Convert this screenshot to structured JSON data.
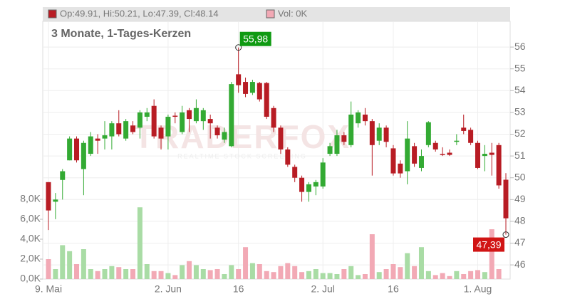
{
  "chart_data": {
    "type": "candlestick",
    "title": "3 Monate, 1-Tages-Kerzen",
    "header_ohlc": "Op:49.91, Hi:50.21, Lo:47.39, Cl:48.14",
    "header_volume": "Vol: 0K",
    "watermark": "TRADERFOX",
    "watermark_sub": "REALTIME STOCK SCREENING",
    "categories": [
      "9. Mai",
      null,
      null,
      null,
      null,
      null,
      null,
      null,
      null,
      null,
      null,
      null,
      null,
      null,
      null,
      null,
      null,
      "2. Jun",
      null,
      null,
      null,
      null,
      null,
      null,
      null,
      null,
      null,
      "16",
      null,
      null,
      null,
      null,
      null,
      null,
      null,
      null,
      null,
      null,
      null,
      "2. Jul",
      null,
      null,
      null,
      null,
      null,
      null,
      null,
      null,
      null,
      "16",
      null,
      null,
      null,
      null,
      null,
      null,
      null,
      null,
      null,
      null,
      null,
      "1. Aug",
      null,
      null,
      null,
      null
    ],
    "series": [
      {
        "name": "open",
        "values": [
          49.8,
          48.9,
          49.9,
          50.8,
          51.8,
          50.4,
          51.1,
          51.8,
          51.8,
          51.9,
          52.5,
          51.8,
          52.4,
          52.3,
          52.8,
          53.3,
          52.3,
          51.9,
          52.85,
          52.1,
          53.1,
          52.6,
          52.6,
          52.7,
          52.3,
          51.75,
          51.45,
          54.75,
          54.4,
          53.9,
          54.35,
          54.35,
          53.2,
          52.3,
          51.3,
          50.5,
          50.0,
          49.35,
          49.6,
          49.6,
          51.1,
          51.1,
          51.95,
          51.5,
          52.5,
          52.9,
          52.6,
          51.7,
          52.3,
          51.35,
          50.65,
          50.3,
          51.45,
          50.45,
          51.5,
          51.6,
          51.1,
          51.15,
          51.65,
          52.3,
          52.2,
          51.6,
          51.0,
          51.15,
          51.5,
          49.91
        ]
      },
      {
        "name": "high",
        "values": [
          49.8,
          49.3,
          50.4,
          51.9,
          51.9,
          51.7,
          52.1,
          52.0,
          52.6,
          52.6,
          53.1,
          52.7,
          52.6,
          53.1,
          53.2,
          53.6,
          52.4,
          52.9,
          53.0,
          53.3,
          53.2,
          53.6,
          53.2,
          52.9,
          52.4,
          52.3,
          54.4,
          55.98,
          54.6,
          54.5,
          54.4,
          54.4,
          53.3,
          52.4,
          51.4,
          50.6,
          50.1,
          49.8,
          49.9,
          50.9,
          51.6,
          52.2,
          52.1,
          53.5,
          53.1,
          53.2,
          52.7,
          52.5,
          52.4,
          51.5,
          50.8,
          52.6,
          51.6,
          51.3,
          52.6,
          51.7,
          51.4,
          51.3,
          52.0,
          52.9,
          52.3,
          51.7,
          51.5,
          51.6,
          51.6,
          50.21
        ]
      },
      {
        "name": "low",
        "values": [
          47.6,
          48.1,
          49.0,
          50.8,
          50.7,
          49.2,
          51.0,
          51.1,
          51.3,
          51.3,
          51.9,
          51.7,
          52.0,
          51.8,
          52.6,
          51.8,
          51.3,
          51.3,
          52.5,
          52.0,
          52.1,
          52.5,
          52.2,
          51.8,
          51.8,
          51.6,
          51.4,
          53.9,
          53.7,
          53.8,
          53.5,
          52.7,
          52.1,
          51.1,
          50.5,
          49.8,
          48.9,
          48.9,
          49.2,
          49.5,
          51.0,
          51.0,
          51.5,
          51.4,
          52.3,
          52.4,
          50.1,
          51.5,
          51.4,
          50.1,
          50.0,
          49.7,
          50.5,
          50.3,
          51.4,
          51.2,
          51.0,
          51.0,
          51.5,
          52.0,
          51.5,
          50.4,
          50.3,
          50.1,
          49.5,
          47.39
        ]
      },
      {
        "name": "close",
        "values": [
          48.5,
          49.0,
          50.3,
          51.8,
          50.8,
          51.6,
          51.9,
          51.7,
          51.95,
          52.5,
          52.0,
          52.6,
          52.1,
          53.0,
          53.0,
          51.9,
          51.8,
          52.8,
          52.8,
          53.0,
          52.7,
          53.2,
          53.1,
          52.5,
          51.95,
          52.1,
          54.3,
          54.25,
          53.85,
          54.4,
          53.6,
          52.8,
          52.3,
          51.3,
          50.6,
          50.0,
          49.35,
          49.7,
          49.8,
          50.7,
          51.45,
          51.95,
          51.65,
          52.9,
          53.0,
          52.6,
          51.5,
          52.3,
          51.65,
          50.2,
          50.2,
          51.8,
          50.65,
          51.0,
          52.55,
          51.3,
          51.05,
          51.05,
          51.7,
          52.15,
          51.6,
          50.45,
          51.1,
          51.05,
          49.65,
          48.14
        ]
      },
      {
        "name": "volume",
        "axis": "y2",
        "values": [
          2.0,
          1.0,
          3.4,
          2.8,
          1.5,
          3.0,
          1.0,
          0.8,
          1.0,
          1.3,
          1.2,
          1.0,
          1.0,
          7.2,
          1.5,
          0.8,
          0.8,
          0.6,
          0.4,
          1.4,
          1.8,
          1.4,
          1.0,
          0.9,
          1.0,
          0.5,
          1.4,
          1.0,
          3.2,
          1.6,
          1.5,
          0.8,
          0.7,
          1.3,
          1.6,
          1.3,
          0.7,
          0.8,
          1.0,
          0.6,
          0.6,
          0.5,
          1.0,
          1.3,
          0.4,
          0.5,
          4.5,
          0.7,
          1.0,
          1.5,
          1.2,
          2.6,
          1.3,
          3.2,
          0.8,
          0.4,
          0.6,
          0.3,
          0.8,
          0.5,
          0.8,
          0.9,
          0.7,
          5.0,
          1.0,
          0.0
        ]
      }
    ],
    "up_color": "#33aa33",
    "down_color": "#b81c24",
    "volume_up_color": "#a9dca5",
    "volume_down_color": "#f2a9b5",
    "ylim": [
      45.35,
      57.18
    ],
    "yticks": [
      46,
      47,
      48,
      49,
      50,
      51,
      52,
      53,
      54,
      55,
      56
    ],
    "y2lim": [
      0,
      25.86
    ],
    "y2ticks": [
      {
        "value": 0,
        "label": "0,0K"
      },
      {
        "value": 2,
        "label": "2,0K"
      },
      {
        "value": 4,
        "label": "4,0K"
      },
      {
        "value": 6,
        "label": "6,0K"
      },
      {
        "value": 8,
        "label": "8,0K"
      }
    ],
    "annotations": [
      {
        "value": 55.98,
        "label": "55,98",
        "color": "#0f9a12"
      },
      {
        "value": 47.39,
        "label": "47,39",
        "color": "#d11414"
      }
    ],
    "grid": true
  }
}
